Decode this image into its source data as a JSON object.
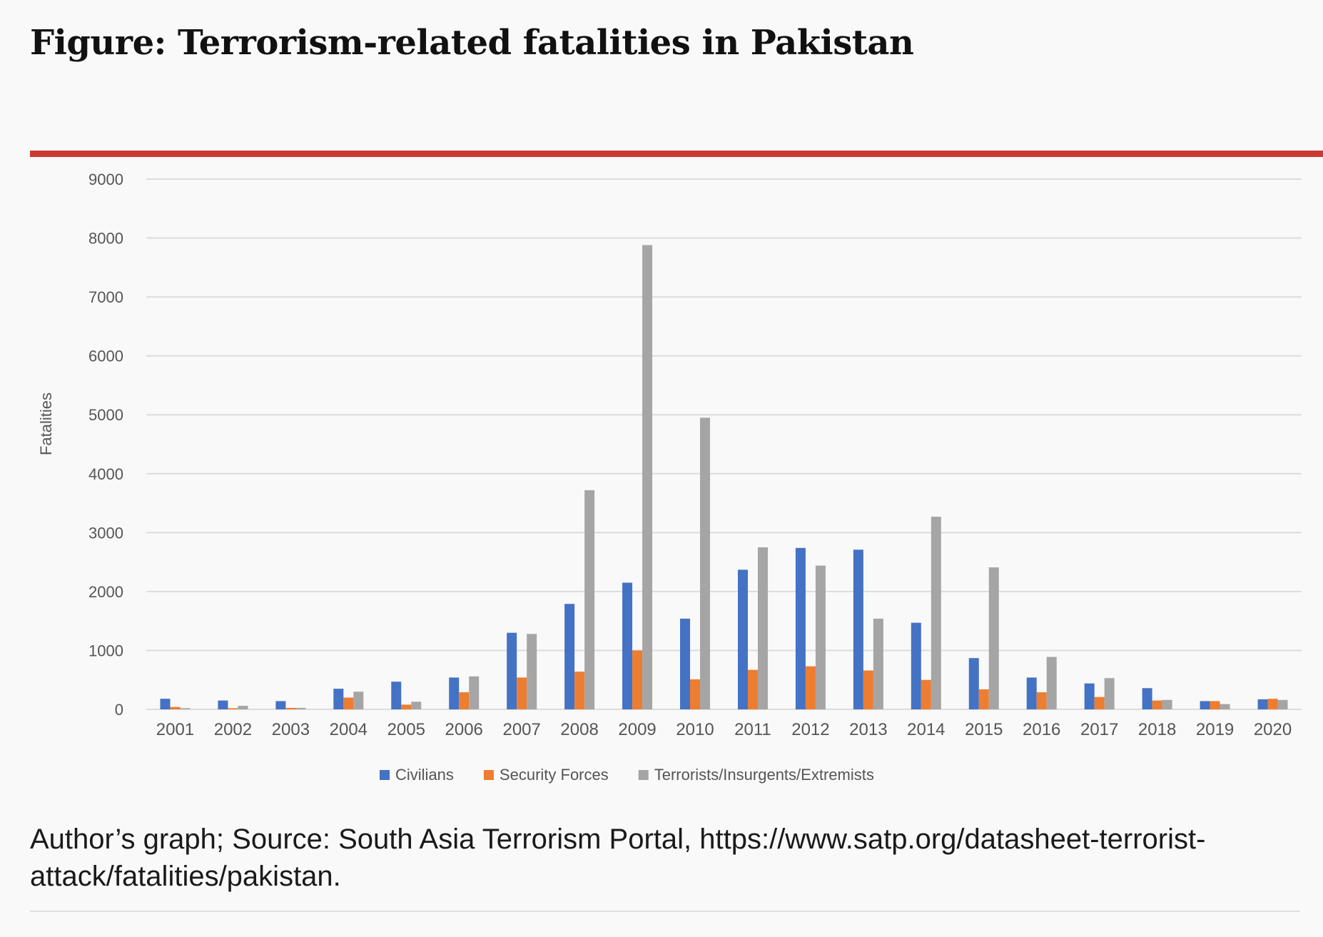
{
  "title": "Figure: Terrorism-related fatalities in Pakistan",
  "rule_color": "#c93a33",
  "caption": "Author’s graph; Source: South Asia Terrorism Portal, https://www.satp.org/datasheet-terrorist-attack/fatalities/pakistan.",
  "chart_data": {
    "type": "bar",
    "title": "",
    "xlabel": "",
    "ylabel": "Fatalities",
    "ylim": [
      0,
      9000
    ],
    "yticks": [
      0,
      1000,
      2000,
      3000,
      4000,
      5000,
      6000,
      7000,
      8000,
      9000
    ],
    "grid": true,
    "legend_position": "bottom",
    "categories": [
      "2001",
      "2002",
      "2003",
      "2004",
      "2005",
      "2006",
      "2007",
      "2008",
      "2009",
      "2010",
      "2011",
      "2012",
      "2013",
      "2014",
      "2015",
      "2016",
      "2017",
      "2018",
      "2019",
      "2020"
    ],
    "series": [
      {
        "name": "Civilians",
        "color": "#4472c4",
        "values": [
          180,
          150,
          140,
          350,
          470,
          540,
          1300,
          1790,
          2150,
          1540,
          2370,
          2740,
          2710,
          1470,
          870,
          540,
          440,
          360,
          140,
          170
        ]
      },
      {
        "name": "Security Forces",
        "color": "#ed7d31",
        "values": [
          40,
          20,
          25,
          200,
          80,
          290,
          540,
          640,
          1000,
          510,
          670,
          730,
          660,
          500,
          340,
          290,
          210,
          150,
          140,
          180
        ]
      },
      {
        "name": "Terrorists/Insurgents/Extremists",
        "color": "#a5a5a5",
        "values": [
          20,
          60,
          25,
          300,
          130,
          560,
          1280,
          3720,
          7880,
          4950,
          2750,
          2440,
          1540,
          3270,
          2410,
          890,
          530,
          160,
          90,
          160
        ]
      }
    ]
  }
}
